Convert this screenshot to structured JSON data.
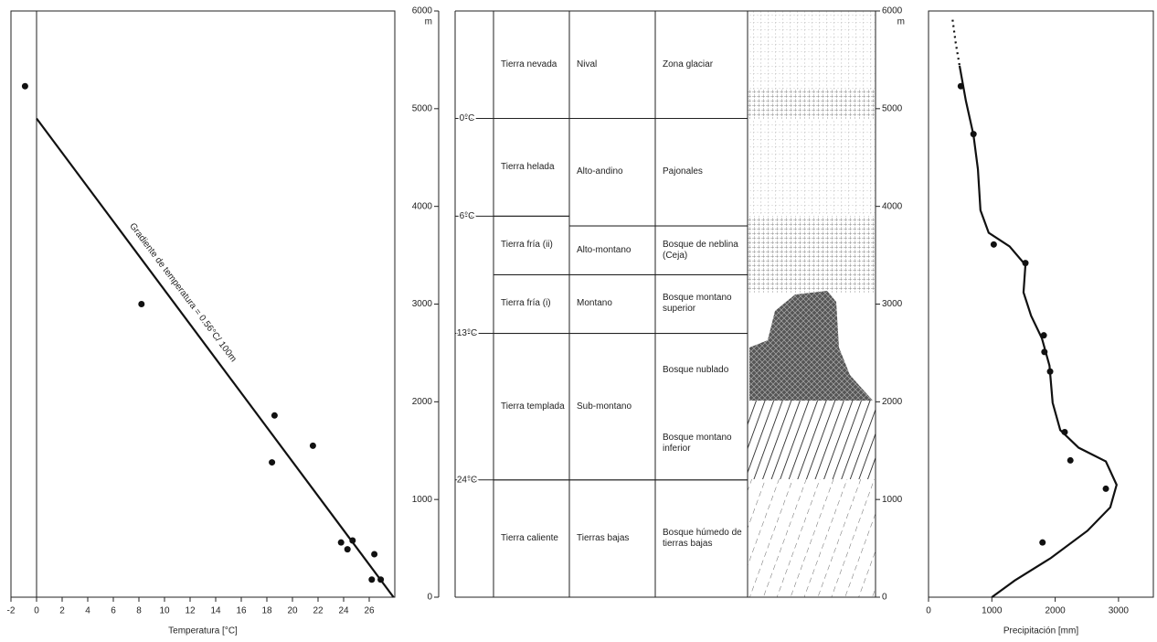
{
  "chart_data": [
    {
      "type": "scatter",
      "xlabel": "Temperatura [°C]",
      "xlim": [
        -2,
        28
      ],
      "xticks": [
        -2,
        0,
        2,
        4,
        6,
        8,
        10,
        12,
        14,
        16,
        18,
        20,
        22,
        24,
        26
      ],
      "ylim": [
        0,
        6000
      ],
      "x": [
        -0.9,
        8.2,
        18.6,
        18.4,
        21.6,
        23.8,
        24.7,
        24.3,
        26.4,
        26.2,
        26.9
      ],
      "y": [
        5230,
        3000,
        1860,
        1380,
        1550,
        560,
        580,
        490,
        440,
        180,
        180
      ],
      "trend": {
        "x": [
          0,
          27.9
        ],
        "y": [
          4900,
          0
        ]
      },
      "annotation": "Gradiente de temperatura = 0.56°C/ 100m"
    },
    {
      "type": "zonation",
      "ylim": [
        0,
        6000
      ],
      "yticks": [
        0,
        1000,
        2000,
        3000,
        4000,
        5000,
        6000
      ],
      "unit": "m",
      "isotherms": [
        {
          "label": "0°C",
          "value": 4900
        },
        {
          "label": "6°C",
          "value": 3900
        },
        {
          "label": "13°C",
          "value": 2700
        },
        {
          "label": "24°C",
          "value": 1200
        }
      ],
      "columns": [
        [
          {
            "label": "Tierra nevada",
            "from": 4900,
            "to": 6000
          },
          {
            "label": "Tierra helada",
            "from": 3900,
            "to": 4900
          },
          {
            "label": "Tierra fría (ii)",
            "from": 3300,
            "to": 3900
          },
          {
            "label": "Tierra fría (i)",
            "from": 2700,
            "to": 3300
          },
          {
            "label": "Tierra templada",
            "from": 1200,
            "to": 2700
          },
          {
            "label": "Tierra caliente",
            "from": 0,
            "to": 1200
          }
        ],
        [
          {
            "label": "Nival",
            "from": 4900,
            "to": 6000
          },
          {
            "label": "Alto-andino",
            "from": 3800,
            "to": 4900
          },
          {
            "label": "Alto-montano",
            "from": 3300,
            "to": 3800
          },
          {
            "label": "Montano",
            "from": 2700,
            "to": 3300
          },
          {
            "label": "Sub-montano",
            "from": 1200,
            "to": 2700
          },
          {
            "label": "Tierras bajas",
            "from": 0,
            "to": 1200
          }
        ],
        [
          {
            "label": "Zona glaciar",
            "from": 4900,
            "to": 6000
          },
          {
            "label": "Pajonales",
            "from": 3800,
            "to": 4900
          },
          {
            "label": "Bosque de neblina (Ceja)",
            "from": 3300,
            "to": 3800
          },
          {
            "label": "Bosque montano superior",
            "from": 2700,
            "to": 3300
          },
          {
            "labels": [
              "Bosque nublado",
              "Bosque montano inferior"
            ],
            "from": 1200,
            "to": 2700
          },
          {
            "label": "Bosque húmedo de tierras bajas",
            "from": 0,
            "to": 1200
          }
        ]
      ]
    },
    {
      "type": "line",
      "xlabel": "Precipitación [mm]",
      "xlim": [
        0,
        3550
      ],
      "xticks": [
        0,
        1000,
        2000,
        3000
      ],
      "ylim": [
        0,
        6000
      ],
      "series": [
        {
          "style": "dotted",
          "x": [
            380,
            430,
            490
          ],
          "y": [
            5910,
            5670,
            5440
          ]
        },
        {
          "style": "solid",
          "x": [
            490,
            590,
            710,
            780,
            820,
            950,
            1280,
            1530,
            1500,
            1620,
            1790,
            1910,
            1960,
            2080,
            2370,
            2800,
            2970,
            2870,
            2510,
            1930,
            1360,
            1000
          ],
          "y": [
            5440,
            5080,
            4730,
            4380,
            3960,
            3730,
            3590,
            3400,
            3120,
            2880,
            2650,
            2370,
            1990,
            1710,
            1530,
            1390,
            1150,
            920,
            680,
            400,
            170,
            0
          ]
        }
      ],
      "points": {
        "x": [
          510,
          710,
          1030,
          1530,
          1820,
          1830,
          1920,
          2150,
          2240,
          2800,
          1800
        ],
        "y": [
          5230,
          4740,
          3610,
          3420,
          2680,
          2510,
          2310,
          1690,
          1400,
          1110,
          560
        ]
      }
    }
  ]
}
